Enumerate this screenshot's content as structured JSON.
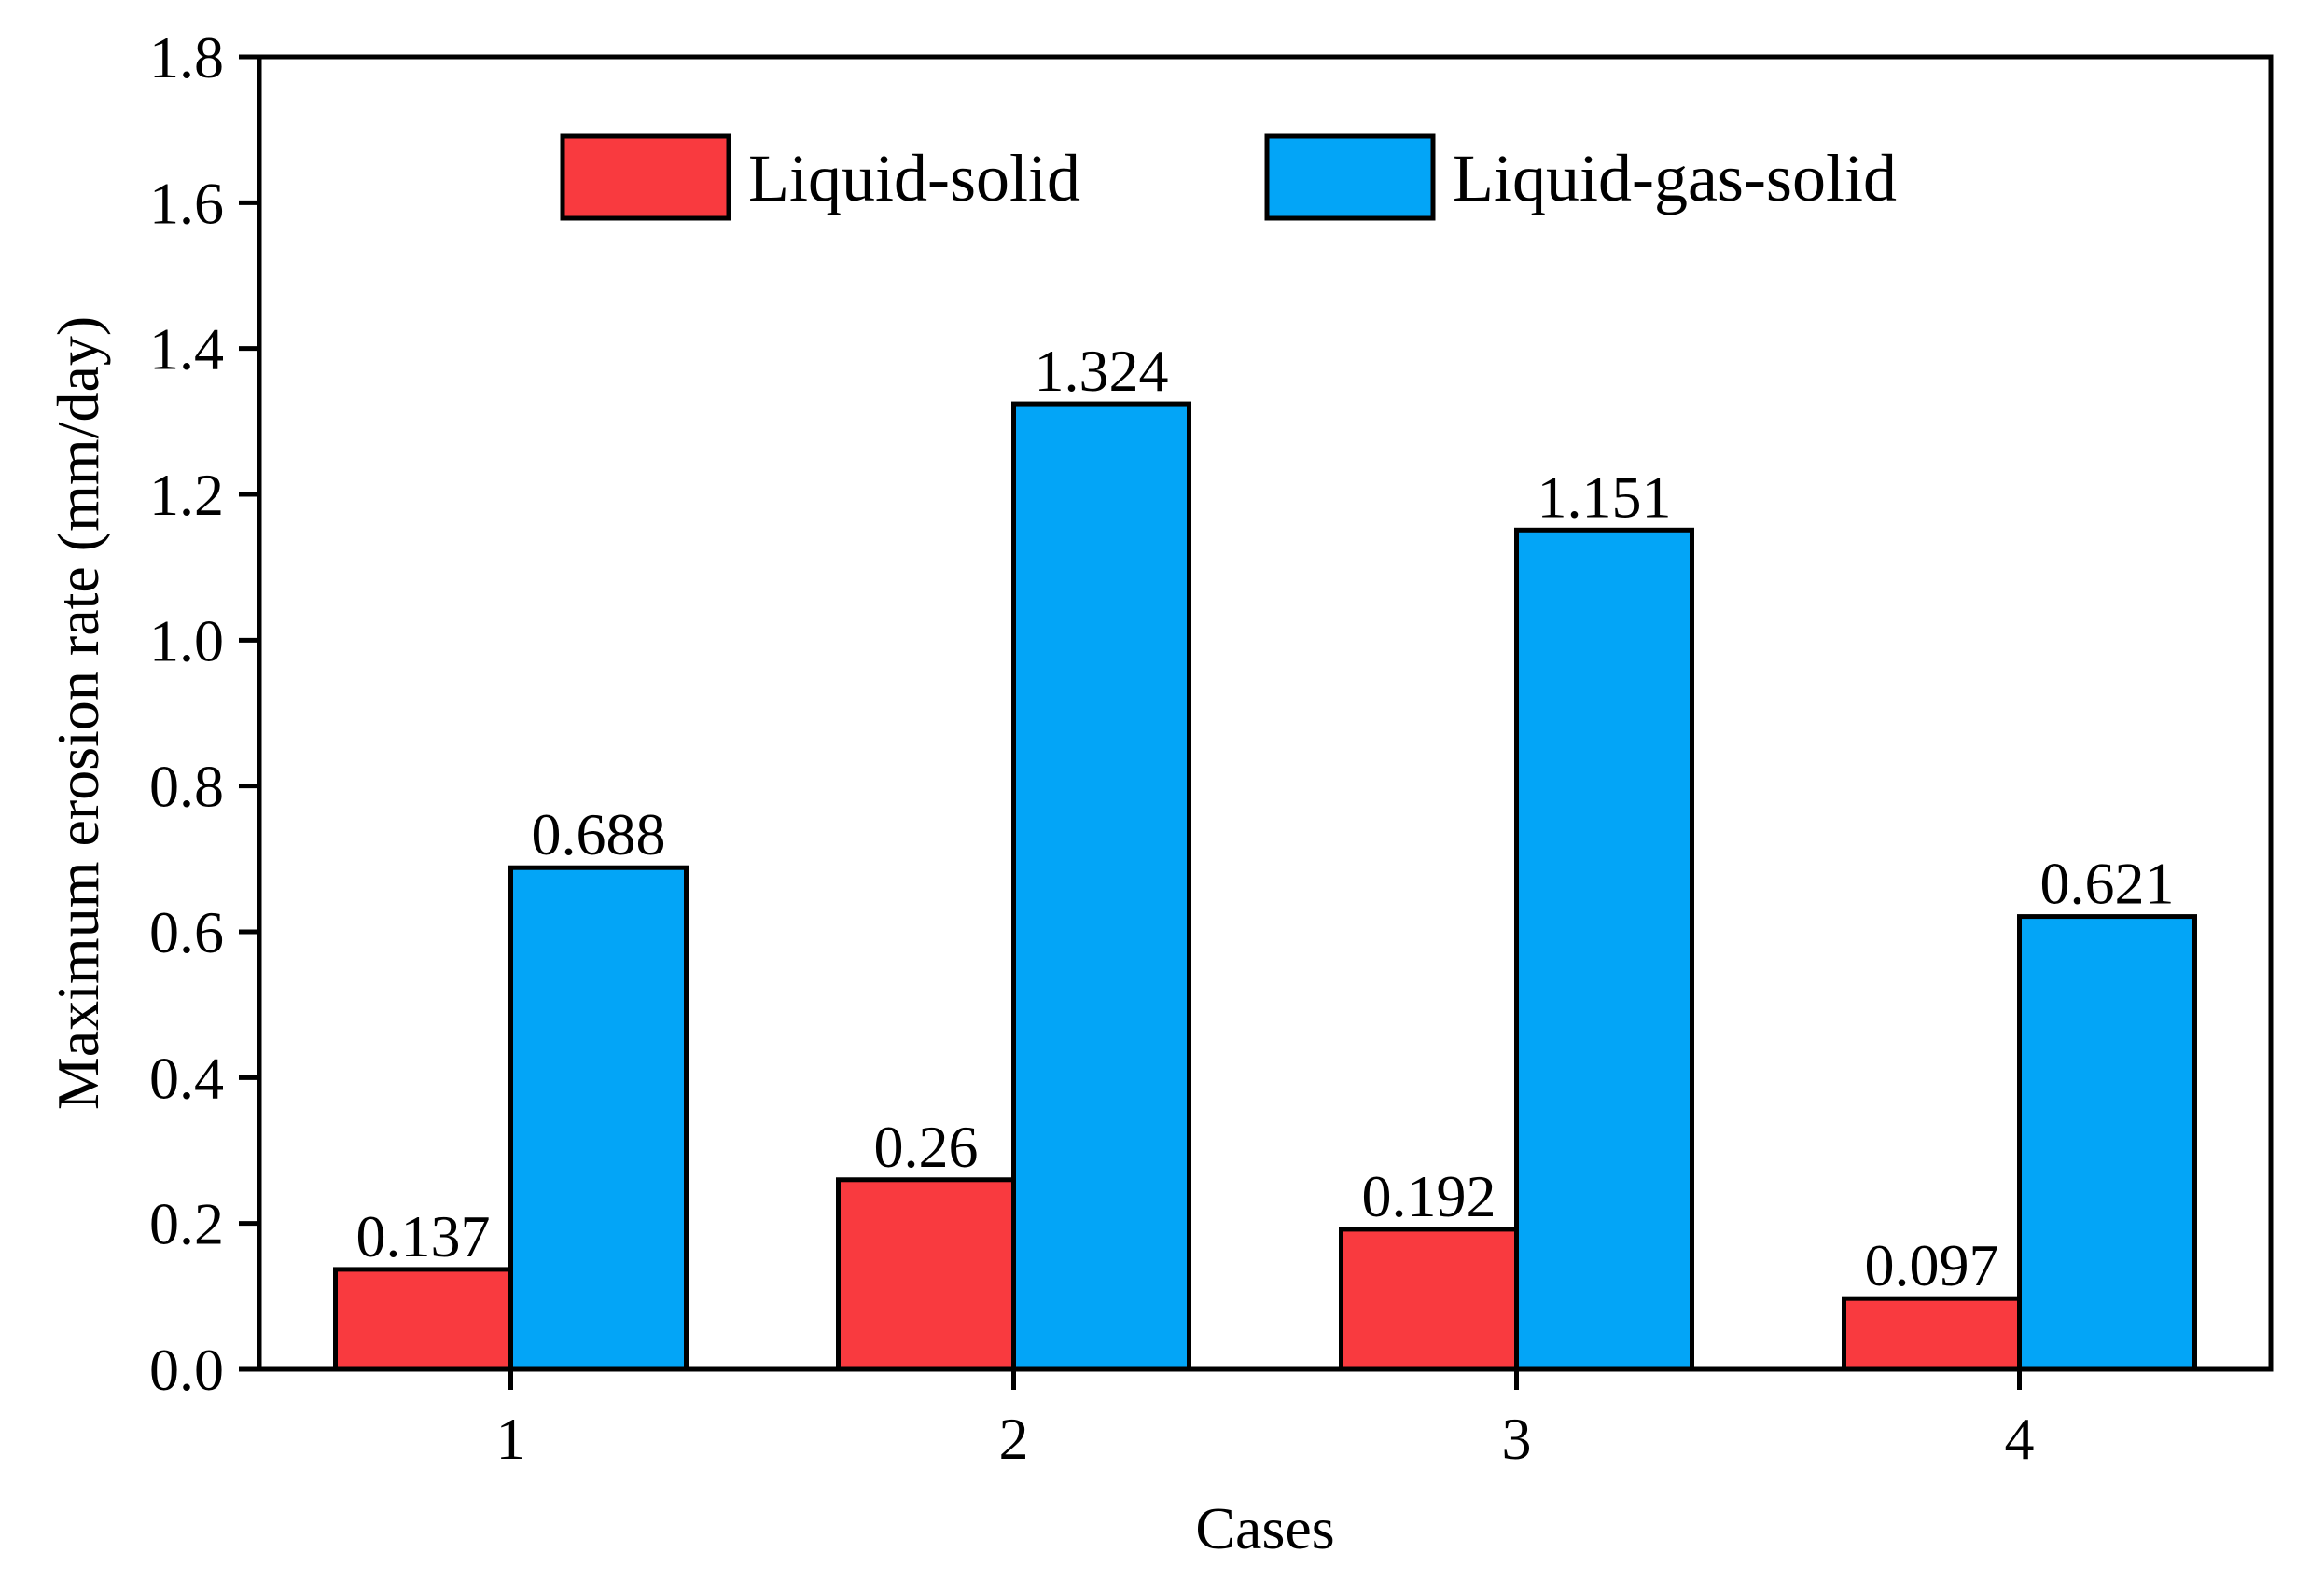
{
  "chart_data": {
    "type": "bar",
    "title": "",
    "xlabel": "Cases",
    "ylabel": "Maximum erosion rate (mm/day)",
    "categories": [
      "1",
      "2",
      "3",
      "4"
    ],
    "ylim": [
      0,
      1.8
    ],
    "yticks": [
      "0.0",
      "0.2",
      "0.4",
      "0.6",
      "0.8",
      "1.0",
      "1.2",
      "1.4",
      "1.6",
      "1.8"
    ],
    "legend_position": "top-center",
    "grid": false,
    "series": [
      {
        "name": "Liquid-solid",
        "color": "#f93a3f",
        "values": [
          0.137,
          0.26,
          0.192,
          0.097
        ],
        "labels": [
          "0.137",
          "0.26",
          "0.192",
          "0.097"
        ]
      },
      {
        "name": "Liquid-gas-solid",
        "color": "#03a5f7",
        "values": [
          0.688,
          1.324,
          1.151,
          0.621
        ],
        "labels": [
          "0.688",
          "1.324",
          "1.151",
          "0.621"
        ]
      }
    ]
  }
}
